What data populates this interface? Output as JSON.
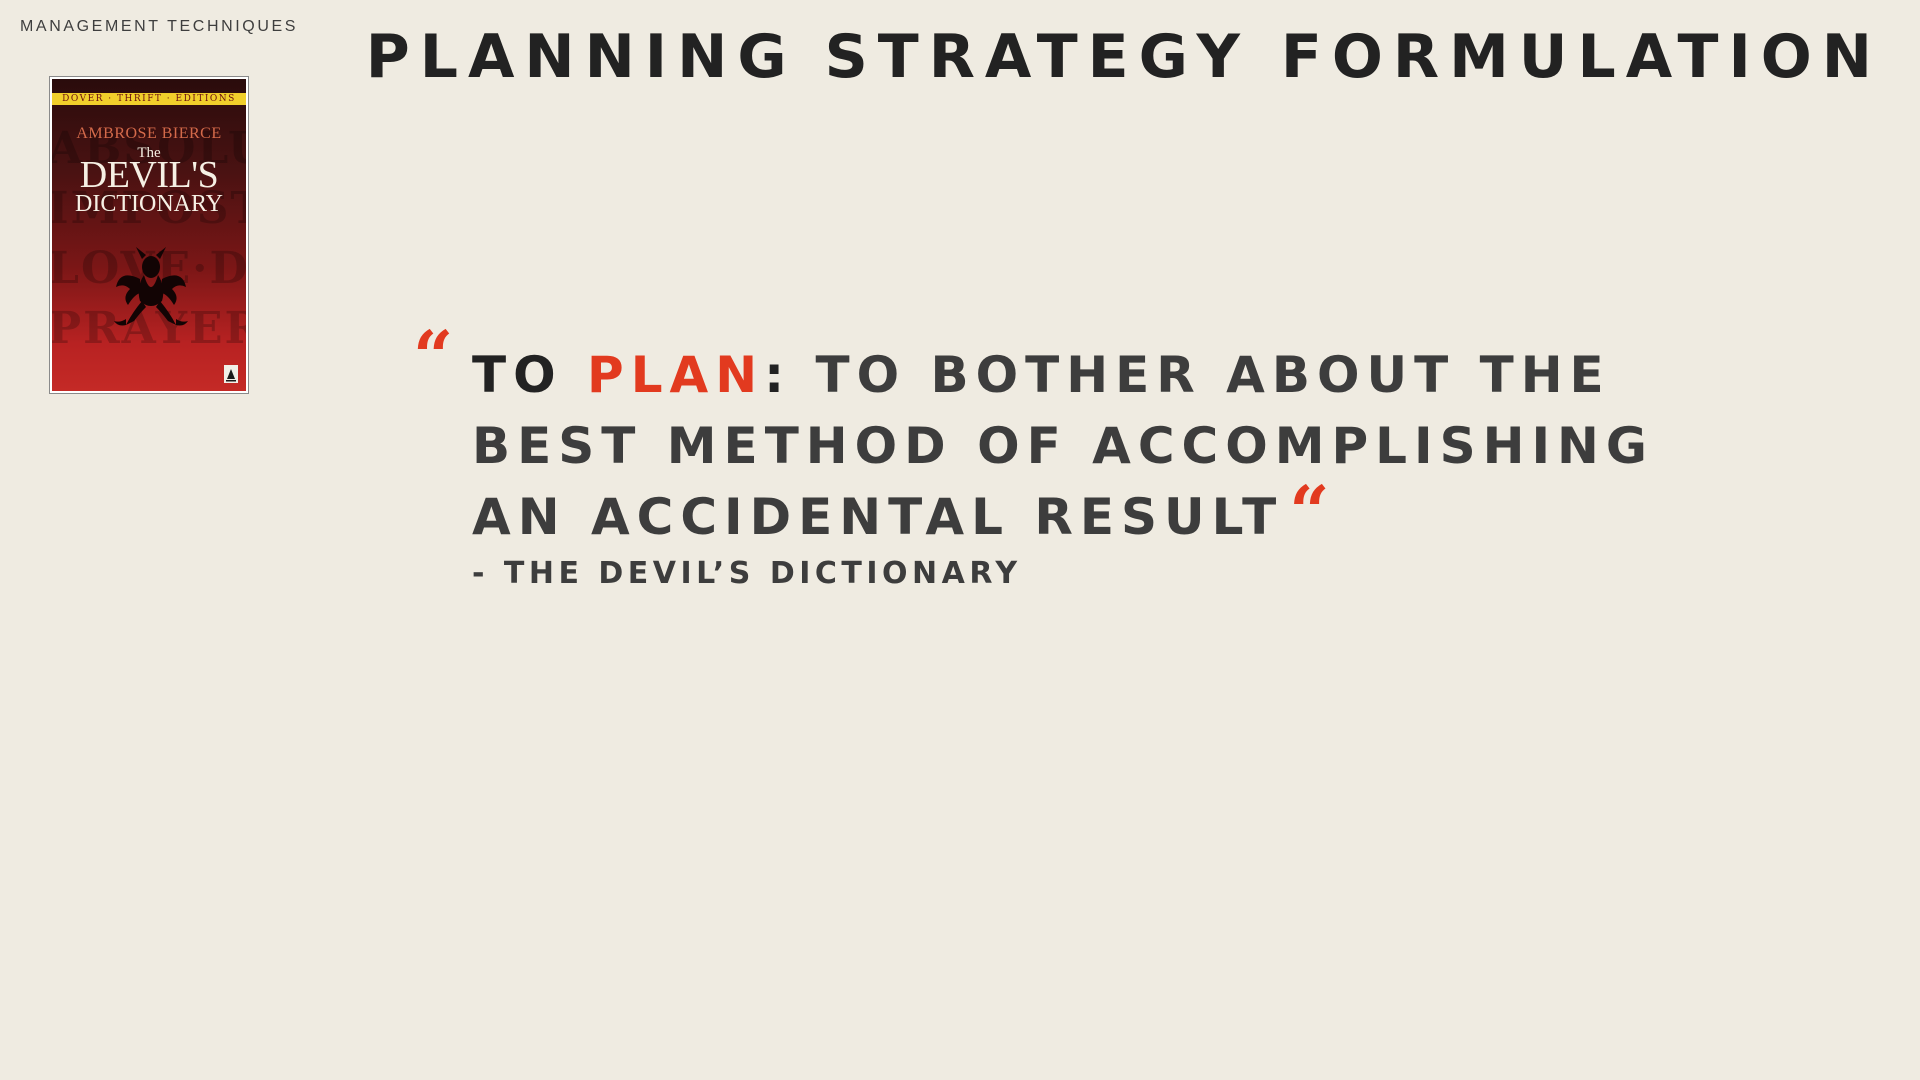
{
  "header": {
    "section_label": "MANAGEMENT TECHNIQUES",
    "title_part1": "PLANNING",
    "title_part2": "STRATEGY FORMULATION"
  },
  "book_cover": {
    "series": "DOVER · THRIFT · EDITIONS",
    "author": "AMBROSE BIERCE",
    "title_the": "The",
    "title_main": "DEVIL'S",
    "title_sub": "DICTIONARY",
    "icon": "demon-emblem-icon"
  },
  "quote": {
    "open_mark": "“",
    "lead": "TO",
    "keyword": "PLAN",
    "colon": ":",
    "line1_rest": "TO BOTHER ABOUT THE",
    "line2": "BEST METHOD OF ACCOMPLISHING",
    "line3": "AN ACCIDENTAL RESULT",
    "close_mark": "“",
    "attribution": "- THE DEVIL’S DICTIONARY"
  },
  "colors": {
    "background": "#efebe1",
    "accent": "#e23a1f",
    "text_dark": "#222222",
    "text_body": "#3d3d3d"
  }
}
